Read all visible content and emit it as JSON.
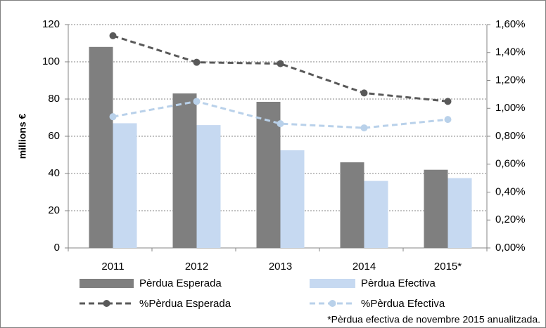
{
  "chart_data": {
    "type": "combo",
    "ylabel": "millions €",
    "categories": [
      "2011",
      "2012",
      "2013",
      "2014",
      "2015*"
    ],
    "series": [
      {
        "name": "Pèrdua Esperada",
        "type": "bar",
        "color": "#7f7f7f",
        "values": [
          108,
          83,
          78.5,
          46,
          42
        ]
      },
      {
        "name": "Pèrdua Efectiva",
        "type": "bar",
        "color": "#c6d9f1",
        "values": [
          67,
          66,
          52.5,
          36,
          37.5
        ]
      },
      {
        "name": "%Pèrdua Esperada",
        "type": "line",
        "axis": "y2",
        "color": "#595959",
        "values": [
          1.52,
          1.33,
          1.32,
          1.11,
          1.05
        ]
      },
      {
        "name": "%Pèrdua Efectiva",
        "type": "line",
        "axis": "y2",
        "color": "#b9d1ea",
        "values": [
          0.94,
          1.05,
          0.89,
          0.86,
          0.92
        ]
      }
    ],
    "ylim": [
      0,
      120
    ],
    "yticks": [
      0,
      20,
      40,
      60,
      80,
      100,
      120
    ],
    "y2lim": [
      0,
      1.6
    ],
    "y2ticks": [
      {
        "value": 0,
        "label": "0,00%"
      },
      {
        "value": 0.2,
        "label": "0,20%"
      },
      {
        "value": 0.4,
        "label": "0,40%"
      },
      {
        "value": 0.6,
        "label": "0,60%"
      },
      {
        "value": 0.8,
        "label": "0,80%"
      },
      {
        "value": 1.0,
        "label": "1,00%"
      },
      {
        "value": 1.2,
        "label": "1,20%"
      },
      {
        "value": 1.4,
        "label": "1,40%"
      },
      {
        "value": 1.6,
        "label": "1,60%"
      }
    ],
    "grid": true,
    "note": "*Pèrdua efectiva de novembre 2015 anualitzada."
  }
}
